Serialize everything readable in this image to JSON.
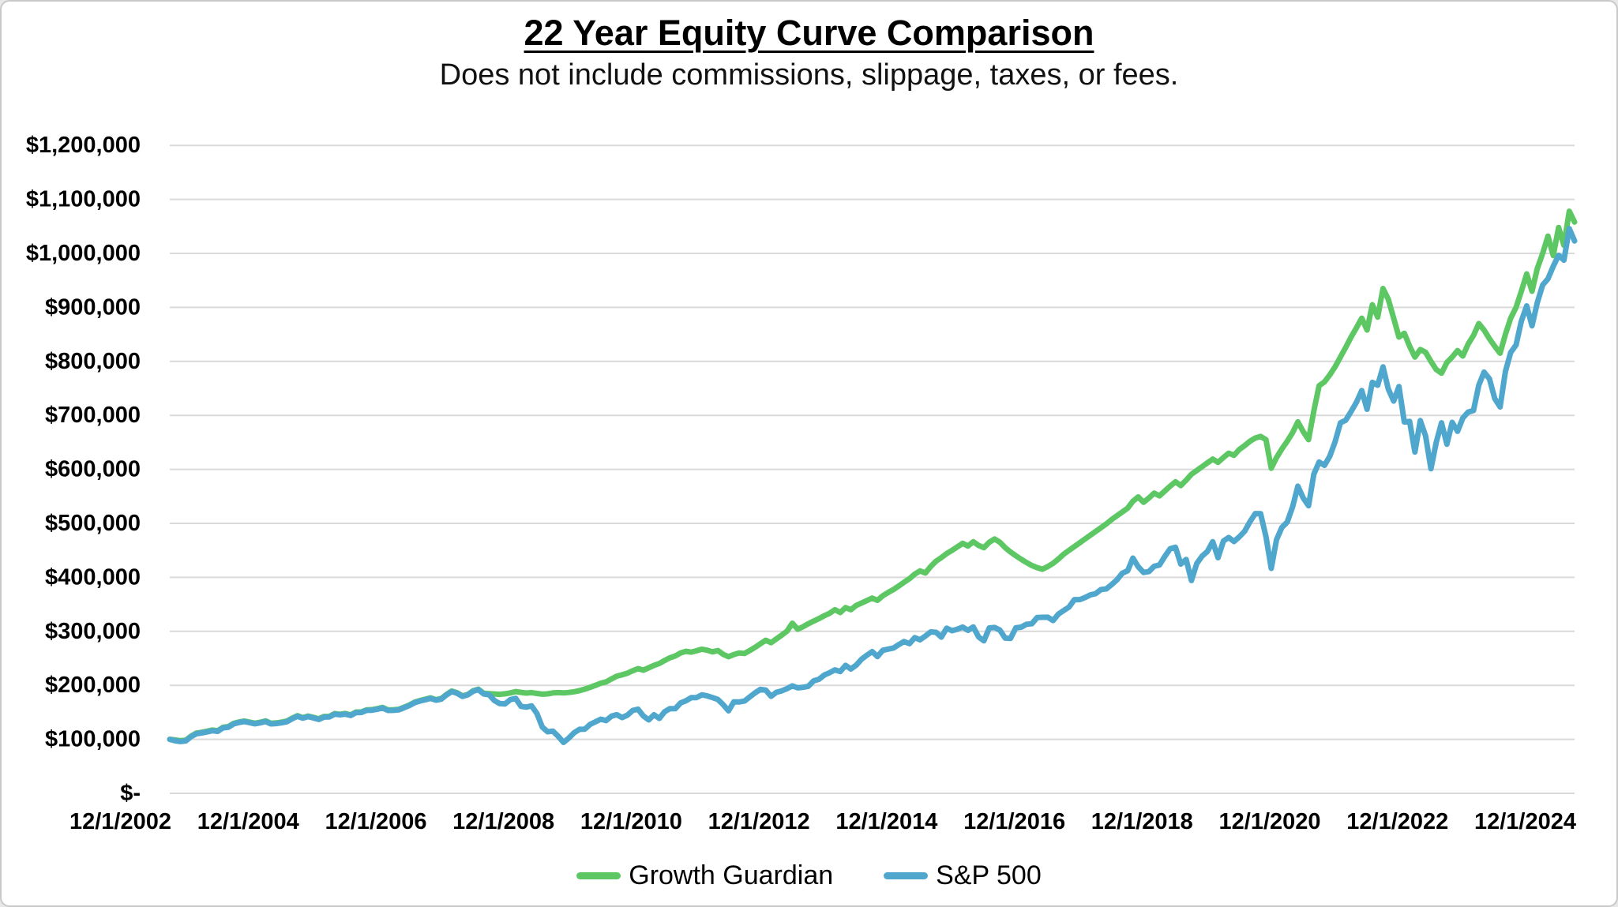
{
  "page": {
    "background_color": "#FFFFFF",
    "border_color": "#C9C9C9",
    "gridline_color": "#D9D9D9",
    "text_color": "#000000"
  },
  "header": {
    "title": "22 Year Equity Curve Comparison",
    "subtitle": "Does not include commissions, slippage, taxes, or fees."
  },
  "chart_data": {
    "type": "line",
    "title": "22 Year Equity Curve Comparison",
    "subtitle": "Does not include commissions, slippage, taxes, or fees.",
    "grid": "horizontal",
    "legend_position": "bottom",
    "ylabel": "",
    "xlabel": "",
    "ylim_dollars": [
      0,
      1200000
    ],
    "y_tick_labels": [
      "$-",
      "$100,000",
      "$200,000",
      "$300,000",
      "$400,000",
      "$500,000",
      "$600,000",
      "$700,000",
      "$800,000",
      "$900,000",
      "$1,000,000",
      "$1,100,000",
      "$1,200,000"
    ],
    "x_tick_labels": [
      "12/1/2002",
      "12/1/2004",
      "12/1/2006",
      "12/1/2008",
      "12/1/2010",
      "12/1/2012",
      "12/1/2014",
      "12/1/2016",
      "12/1/2018",
      "12/1/2020",
      "12/1/2022",
      "12/1/2024"
    ],
    "x_unit": "monthly points from 12/1/2002 to 12/1/2024",
    "values_unit": "USD thousands",
    "series": [
      {
        "name": "Growth Guardian",
        "color": "#5DC863",
        "values": [
          100,
          99,
          97.5,
          98.2,
          106,
          111.5,
          113,
          115,
          117.2,
          116,
          122.2,
          123.5,
          129.6,
          132,
          133.8,
          131.8,
          129.8,
          131.6,
          134.2,
          129.8,
          130.4,
          131.8,
          133.8,
          139.2,
          143.8,
          140.2,
          143.2,
          140.6,
          138,
          142.4,
          142.6,
          147.8,
          146.4,
          147.8,
          145.2,
          150.6,
          150.8,
          154.6,
          155,
          156.9,
          159,
          154.5,
          154.8,
          155.6,
          159.3,
          163.4,
          168.7,
          171.9,
          174.2,
          176.9,
          173.5,
          175.4,
          183.1,
          189.5,
          186.2,
          180.6,
          183.2,
          189.9,
          192.8,
          185.2,
          184.6,
          184,
          183.4,
          184.4,
          186,
          188.4,
          187,
          185.6,
          186.6,
          185,
          183.6,
          184.2,
          186,
          186.6,
          186,
          186.8,
          188.2,
          190.2,
          193,
          196.4,
          200,
          204,
          206.5,
          211.8,
          217,
          219.5,
          222.5,
          227,
          231,
          228,
          232.5,
          237,
          240.5,
          246,
          251,
          254.5,
          260,
          263,
          261.5,
          264,
          267,
          265,
          262,
          264.5,
          257.5,
          253,
          257,
          260,
          259,
          264.5,
          270.5,
          277,
          283.5,
          279,
          286,
          293,
          300.5,
          315,
          304,
          308.5,
          314,
          319,
          323.5,
          329,
          333.5,
          340,
          335,
          344,
          340,
          348,
          352.5,
          357,
          361.5,
          357.5,
          366,
          372,
          377.5,
          384,
          391,
          397.5,
          406,
          412,
          408,
          420,
          430,
          436.5,
          444,
          450,
          456.5,
          463,
          458,
          466,
          459,
          455,
          465,
          471,
          465,
          455,
          447,
          440,
          433.5,
          427.5,
          422,
          418,
          415,
          420,
          426,
          434,
          443,
          450,
          457,
          464,
          471,
          478,
          485,
          492,
          499,
          507,
          514,
          521,
          528,
          541,
          549,
          539,
          547,
          556,
          551,
          560,
          569,
          577,
          570,
          580,
          591,
          598,
          605,
          612,
          619,
          613,
          622,
          630,
          626,
          637,
          644,
          652,
          658,
          661,
          655,
          602,
          622,
          638,
          652,
          668,
          688,
          670,
          655,
          708,
          755,
          762,
          775,
          790,
          808,
          826,
          845,
          862,
          880,
          858,
          905,
          882,
          935,
          915,
          880,
          845,
          852,
          828,
          808,
          822,
          817,
          800,
          785,
          778,
          798,
          808,
          820,
          810,
          832,
          848,
          870,
          858,
          842,
          828,
          815,
          850,
          880,
          900,
          930,
          962,
          930,
          972,
          1000,
          1032,
          996,
          1048,
          1015,
          1078,
          1058
        ]
      },
      {
        "name": "S&P 500",
        "color": "#50A7CD",
        "values": [
          100,
          97.4,
          95.9,
          96.9,
          104.9,
          110.4,
          111.8,
          113.8,
          116,
          114.7,
          121.2,
          122.3,
          128.7,
          131.1,
          132.9,
          130.9,
          128.8,
          130.6,
          133.1,
          128.7,
          129.2,
          130.6,
          132.6,
          138,
          142.7,
          139.2,
          142.1,
          139.6,
          136.9,
          141.3,
          141.5,
          146.7,
          145.4,
          146.6,
          144.1,
          149.6,
          149.7,
          153.6,
          154,
          155.9,
          158,
          153.5,
          153.7,
          154.6,
          158.3,
          162.4,
          167.7,
          170.9,
          173.3,
          175.9,
          172.5,
          174.4,
          182.1,
          188.5,
          185.3,
          179.6,
          182.3,
          189.1,
          192.1,
          184.1,
          182.8,
          171.8,
          166.3,
          165.6,
          173.6,
          175.9,
          161.1,
          159.7,
          162,
          147.6,
          122.8,
          114,
          115.2,
          105.5,
          94.3,
          102.5,
          112.3,
          118.6,
          118.8,
          127.8,
          132.4,
          137.3,
          134.8,
          142.9,
          145.6,
          140.4,
          144.7,
          153.5,
          155.9,
          143.4,
          135.9,
          145.4,
          138.8,
          151.2,
          156.9,
          156.9,
          167.4,
          171.4,
          177.2,
          177.3,
          182.5,
          180.4,
          177.4,
          173.8,
          164.4,
          152.8,
          169.5,
          169.1,
          170.9,
          178.5,
          186.2,
          192.4,
          191.2,
          179.7,
          187.1,
          189.7,
          193.9,
          199,
          195.3,
          196.4,
          198.2,
          208.4,
          211.3,
          219.2,
          223.4,
          228.6,
          225.6,
          237,
          230.2,
          237.4,
          248.3,
          255.9,
          262.4,
          253.3,
          264.9,
          267.1,
          269.1,
          275.4,
          281.1,
          277.2,
          288.3,
          284.3,
          291.2,
          299,
          298.3,
          289.3,
          305.9,
          301.1,
          304,
          307.9,
          301.9,
          308.2,
          289.6,
          282.5,
          306.3,
          307.2,
          302.4,
          287.4,
          287,
          306.5,
          307.7,
          313.2,
          314,
          325.6,
          326,
          326.1,
          320.1,
          332,
          338.6,
          345,
          358.7,
          358.8,
          362.5,
          367.6,
          369.9,
          377.5,
          378.6,
          386.5,
          395.5,
          407.6,
          412.1,
          435.7,
          419.7,
          409,
          410.6,
          420.5,
          423,
          438.8,
          453.1,
          455.7,
          424.5,
          433.2,
          394.1,
          425.7,
          439.4,
          447.9,
          466.1,
          436.4,
          467.2,
          473.9,
          466.4,
          475.1,
          485.4,
          503,
          518.2,
          518,
          475.4,
          416.7,
          470.1,
          492.5,
          502.3,
          530.6,
          568.8,
          547.2,
          532.6,
          590.9,
          613.6,
          607.4,
          624.2,
          651.5,
          686.3,
          691.1,
          707.2,
          724,
          746,
          711.3,
          761.1,
          755.9,
          789.8,
          748.9,
          726.5,
          753.4,
          687.7,
          688.9,
          632.1,
          690.4,
          662.2,
          601.2,
          649.9,
          686.2,
          646.6,
          687.2,
          670.4,
          695.1,
          706,
          709,
          755.8,
          780.1,
          767.7,
          731.1,
          715.7,
          781.1,
          816.5,
          830.3,
          874.6,
          902.8,
          865.9,
          908.8,
          941.5,
          952.9,
          976.1,
          996.5,
          987.4,
          1045.7,
          1023.1
        ]
      }
    ]
  }
}
